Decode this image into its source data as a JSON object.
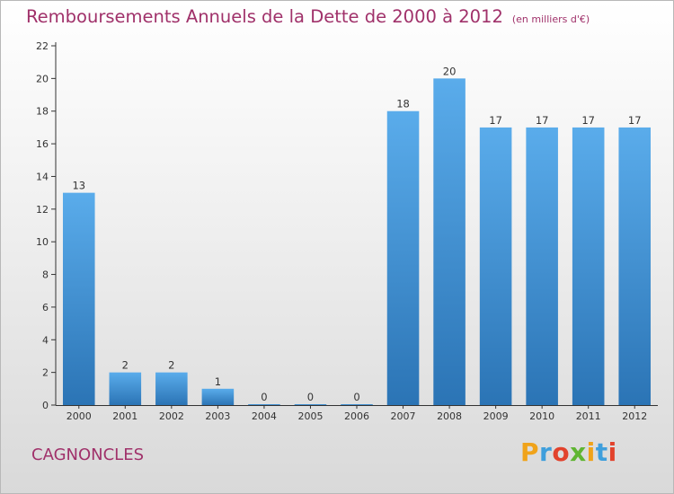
{
  "title": "Remboursements Annuels de la Dette de 2000 à 2012",
  "title_unit": "(en milliers d'€)",
  "commune": "CAGNONCLES",
  "logo": [
    "P",
    "r",
    "o",
    "x",
    "i",
    "t",
    "i"
  ],
  "colors": {
    "title": "#a0316a",
    "bar_top": "#5aaceb",
    "bar_bottom": "#2b74b5",
    "axis": "#333333",
    "logo": [
      "#f0a31a",
      "#3f9fdc",
      "#e2422c",
      "#5fb532"
    ]
  },
  "chart_data": {
    "type": "bar",
    "categories": [
      "2000",
      "2001",
      "2002",
      "2003",
      "2004",
      "2005",
      "2006",
      "2007",
      "2008",
      "2009",
      "2010",
      "2011",
      "2012"
    ],
    "values": [
      13,
      2,
      2,
      1,
      0,
      0,
      0,
      18,
      20,
      17,
      17,
      17,
      17
    ],
    "ylim": [
      0,
      22
    ],
    "yticks": [
      0,
      2,
      4,
      6,
      8,
      10,
      12,
      14,
      16,
      18,
      20,
      22
    ],
    "grid": false,
    "legend": "none"
  }
}
